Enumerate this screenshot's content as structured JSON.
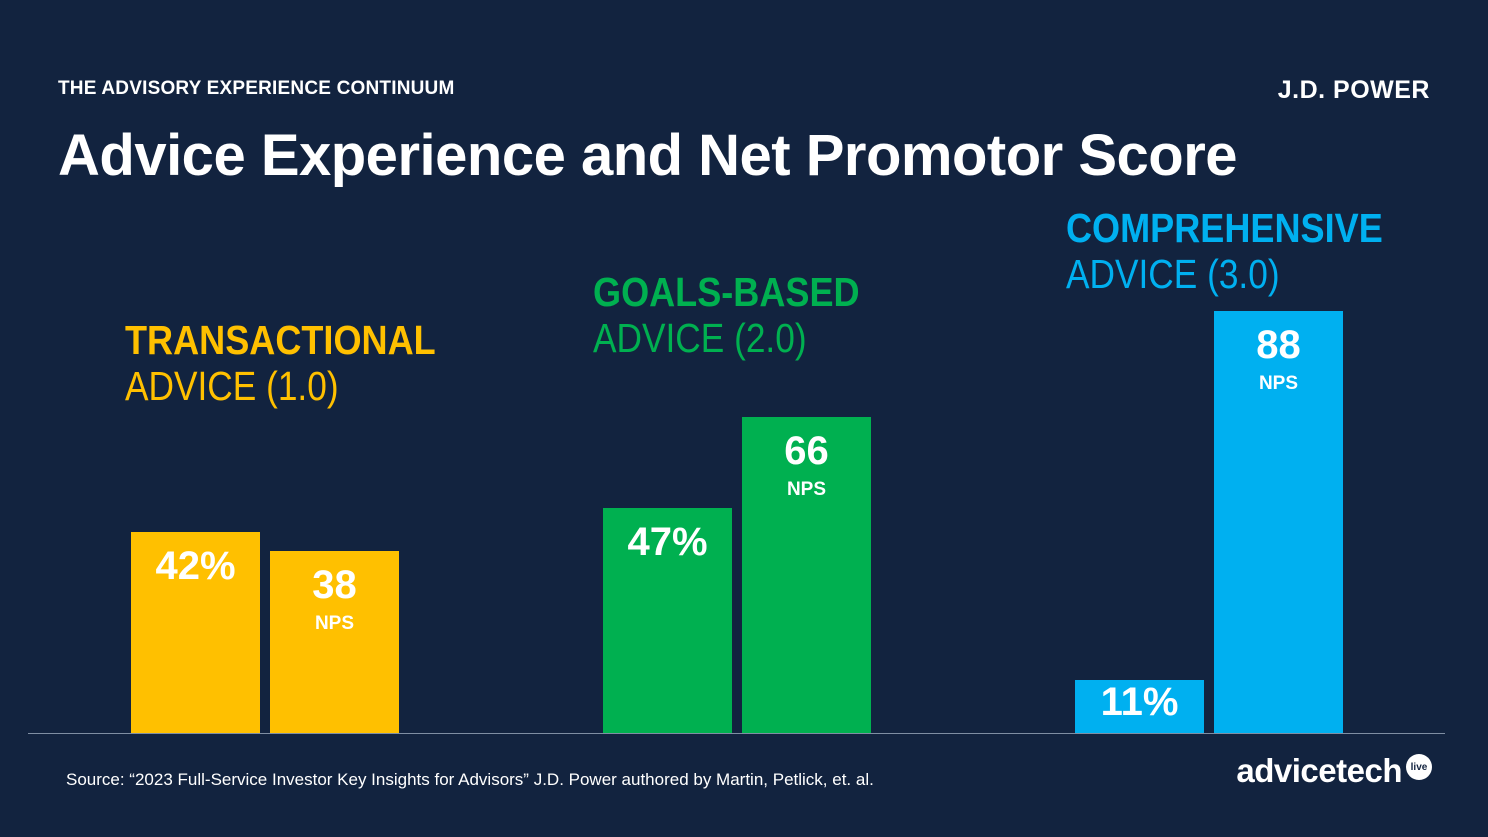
{
  "header": {
    "kicker": "THE ADVISORY EXPERIENCE CONTINUUM",
    "brand": "J.D. POWER",
    "title": "Advice Experience and Net Promotor Score"
  },
  "colors": {
    "background": "#12233f",
    "transactional": "#ffc000",
    "goals_based": "#00b050",
    "comprehensive": "#00b0f0"
  },
  "chart_data": {
    "type": "bar",
    "title": "Advice Experience and Net Promotor Score",
    "categories": [
      "TRANSACTIONAL ADVICE (1.0)",
      "GOALS-BASED ADVICE (2.0)",
      "COMPREHENSIVE ADVICE (3.0)"
    ],
    "groups": [
      {
        "label_strong": "TRANSACTIONAL",
        "label_light": "ADVICE (1.0)",
        "color": "#ffc000",
        "share_pct": 42,
        "share_label": "42%",
        "nps": 38,
        "nps_label": "38",
        "nps_unit": "NPS"
      },
      {
        "label_strong": "GOALS-BASED",
        "label_light": "ADVICE (2.0)",
        "color": "#00b050",
        "share_pct": 47,
        "share_label": "47%",
        "nps": 66,
        "nps_label": "66",
        "nps_unit": "NPS"
      },
      {
        "label_strong": "COMPREHENSIVE",
        "label_light": "ADVICE (3.0)",
        "color": "#00b0f0",
        "share_pct": 11,
        "share_label": "11%",
        "nps": 88,
        "nps_label": "88",
        "nps_unit": "NPS"
      }
    ],
    "ylim": [
      0,
      100
    ],
    "grid": false,
    "legend": "none"
  },
  "footer": {
    "source": "Source: “2023 Full-Service Investor Key Insights for Advisors”  J.D. Power authored by Martin, Petlick, et. al.",
    "logo_word_a": "advice",
    "logo_word_b": "tech",
    "logo_badge": "live"
  }
}
